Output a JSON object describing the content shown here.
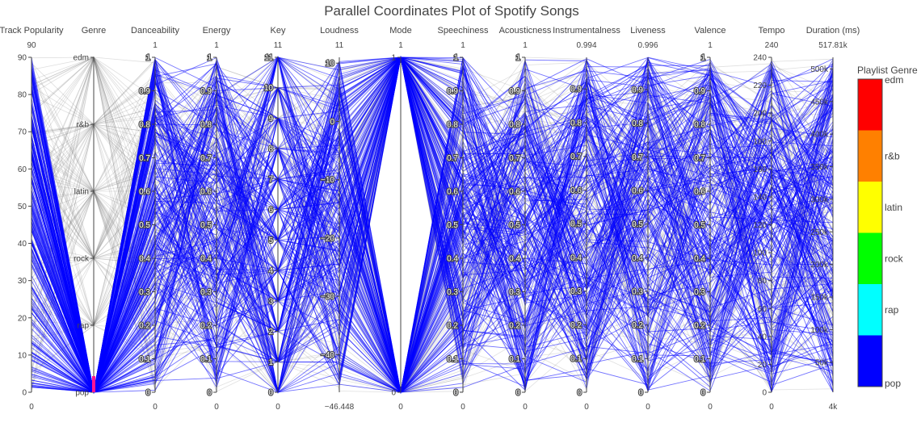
{
  "chart_data": {
    "type": "parallel_coordinates",
    "title": "Parallel Coordinates Plot of Spotify Songs",
    "colorscale": {
      "title": "Playlist Genre",
      "categories": [
        "edm",
        "r&b",
        "latin",
        "rock",
        "rap",
        "pop"
      ],
      "colors": [
        "#ff0000",
        "#ff8000",
        "#ffff00",
        "#00ff00",
        "#00ffff",
        "#0000ff"
      ]
    },
    "line_color_main": "#0000ff",
    "line_color_context": "#7f7f7f",
    "axes": [
      {
        "label": "Track Popularity",
        "range": [
          0,
          90
        ],
        "range_labels": [
          "0",
          "90"
        ],
        "tickvals": [
          0,
          10,
          20,
          30,
          40,
          50,
          60,
          70,
          80,
          90
        ],
        "ticktext": [
          "0",
          "10",
          "20",
          "30",
          "40",
          "50",
          "60",
          "70",
          "80",
          "90"
        ],
        "tick_side": "left",
        "halo": false
      },
      {
        "label": "Genre",
        "range": [
          0,
          5
        ],
        "range_labels": [
          "",
          ""
        ],
        "tickvals": [
          0,
          1,
          2,
          3,
          4,
          5
        ],
        "ticktext": [
          "pop",
          "rap",
          "rock",
          "latin",
          "r&b",
          "edm"
        ],
        "tick_side": "left",
        "halo": false
      },
      {
        "label": "Danceability",
        "range": [
          0,
          1
        ],
        "range_labels": [
          "0",
          "1"
        ],
        "tickvals": [
          0,
          0.1,
          0.2,
          0.3,
          0.4,
          0.5,
          0.6,
          0.7,
          0.8,
          0.9,
          1
        ],
        "ticktext": [
          "0",
          "0.1",
          "0.2",
          "0.3",
          "0.4",
          "0.5",
          "0.6",
          "0.7",
          "0.8",
          "0.9",
          "1"
        ],
        "tick_side": "left",
        "halo": true
      },
      {
        "label": "Energy",
        "range": [
          0,
          1
        ],
        "range_labels": [
          "0",
          "1"
        ],
        "tickvals": [
          0,
          0.1,
          0.2,
          0.3,
          0.4,
          0.5,
          0.6,
          0.7,
          0.8,
          0.9,
          1
        ],
        "ticktext": [
          "0",
          "0.1",
          "0.2",
          "0.3",
          "0.4",
          "0.5",
          "0.6",
          "0.7",
          "0.8",
          "0.9",
          "1"
        ],
        "tick_side": "left",
        "halo": true
      },
      {
        "label": "Key",
        "range": [
          0,
          11
        ],
        "range_labels": [
          "0",
          "11"
        ],
        "tickvals": [
          0,
          1,
          2,
          3,
          4,
          5,
          6,
          7,
          8,
          9,
          10,
          11
        ],
        "ticktext": [
          "0",
          "1",
          "2",
          "3",
          "4",
          "5",
          "6",
          "7",
          "8",
          "9",
          "10",
          "11"
        ],
        "tick_side": "left",
        "halo": true
      },
      {
        "label": "Loudness",
        "range": [
          -46.448,
          11
        ],
        "range_labels": [
          "−46.448",
          "11"
        ],
        "tickvals": [
          -40,
          -30,
          -20,
          -10,
          0,
          10
        ],
        "ticktext": [
          "−40",
          "−30",
          "−20",
          "−10",
          "0",
          "10"
        ],
        "tick_side": "left",
        "halo": true
      },
      {
        "label": "Mode",
        "range": [
          0,
          1
        ],
        "range_labels": [
          "0",
          "1"
        ],
        "tickvals": [
          0,
          1
        ],
        "ticktext": [
          "0",
          "1"
        ],
        "tick_side": "left",
        "halo": false
      },
      {
        "label": "Speechiness",
        "range": [
          0,
          1
        ],
        "range_labels": [
          "0",
          "1"
        ],
        "tickvals": [
          0,
          0.1,
          0.2,
          0.3,
          0.4,
          0.5,
          0.6,
          0.7,
          0.8,
          0.9,
          1
        ],
        "ticktext": [
          "0",
          "0.1",
          "0.2",
          "0.3",
          "0.4",
          "0.5",
          "0.6",
          "0.7",
          "0.8",
          "0.9",
          "1"
        ],
        "tick_side": "left",
        "halo": true
      },
      {
        "label": "Acousticness",
        "range": [
          0,
          1
        ],
        "range_labels": [
          "0",
          "1"
        ],
        "tickvals": [
          0,
          0.1,
          0.2,
          0.3,
          0.4,
          0.5,
          0.6,
          0.7,
          0.8,
          0.9,
          1
        ],
        "ticktext": [
          "0",
          "0.1",
          "0.2",
          "0.3",
          "0.4",
          "0.5",
          "0.6",
          "0.7",
          "0.8",
          "0.9",
          "1"
        ],
        "tick_side": "left",
        "halo": true
      },
      {
        "label": "Instrumentalness",
        "range": [
          0,
          0.994
        ],
        "range_labels": [
          "0",
          "0.994"
        ],
        "tickvals": [
          0,
          0.1,
          0.2,
          0.3,
          0.4,
          0.5,
          0.6,
          0.7,
          0.8,
          0.9
        ],
        "ticktext": [
          "0",
          "0.1",
          "0.2",
          "0.3",
          "0.4",
          "0.5",
          "0.6",
          "0.7",
          "0.8",
          "0.9"
        ],
        "tick_side": "left",
        "halo": true
      },
      {
        "label": "Liveness",
        "range": [
          0,
          0.996
        ],
        "range_labels": [
          "0",
          "0.996"
        ],
        "tickvals": [
          0,
          0.1,
          0.2,
          0.3,
          0.4,
          0.5,
          0.6,
          0.7,
          0.8,
          0.9
        ],
        "ticktext": [
          "0",
          "0.1",
          "0.2",
          "0.3",
          "0.4",
          "0.5",
          "0.6",
          "0.7",
          "0.8",
          "0.9"
        ],
        "tick_side": "left",
        "halo": true
      },
      {
        "label": "Valence",
        "range": [
          0,
          1
        ],
        "range_labels": [
          "0",
          "1"
        ],
        "tickvals": [
          0,
          0.1,
          0.2,
          0.3,
          0.4,
          0.5,
          0.6,
          0.7,
          0.8,
          0.9,
          1
        ],
        "ticktext": [
          "0",
          "0.1",
          "0.2",
          "0.3",
          "0.4",
          "0.5",
          "0.6",
          "0.7",
          "0.8",
          "0.9",
          "1"
        ],
        "tick_side": "left",
        "halo": true
      },
      {
        "label": "Tempo",
        "range": [
          0,
          240
        ],
        "range_labels": [
          "0",
          "240"
        ],
        "tickvals": [
          0,
          20,
          40,
          60,
          80,
          100,
          120,
          140,
          160,
          180,
          200,
          220,
          240
        ],
        "ticktext": [
          "0",
          "20",
          "40",
          "60",
          "80",
          "100",
          "120",
          "140",
          "160",
          "180",
          "200",
          "220",
          "240"
        ],
        "tick_side": "left",
        "halo": false
      },
      {
        "label": "Duration (ms)",
        "range": [
          4000,
          517810
        ],
        "range_labels": [
          "4k",
          "517.81k"
        ],
        "tickvals": [
          50000,
          100000,
          150000,
          200000,
          250000,
          300000,
          350000,
          400000,
          450000,
          500000
        ],
        "ticktext": [
          "50k",
          "100k",
          "150k",
          "200k",
          "250k",
          "300k",
          "350k",
          "400k",
          "450k",
          "500k"
        ],
        "tick_side": "left",
        "halo": false
      }
    ]
  }
}
